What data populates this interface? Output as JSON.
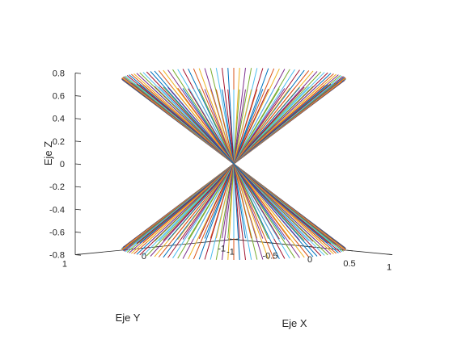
{
  "chart_data": {
    "type": "line3d",
    "title": "",
    "xlabel": "Eje X",
    "ylabel": "Eje Y",
    "zlabel": "Eje Z",
    "xlim": [
      -1,
      1
    ],
    "ylim": [
      -1,
      1
    ],
    "zlim": [
      -0.8,
      0.8
    ],
    "xticks": [
      "-1",
      "-0.5",
      "0",
      "0.5",
      "1"
    ],
    "yticks": [
      "-1",
      "0",
      "1"
    ],
    "zticks": [
      "0.8",
      "0.6",
      "0.4",
      "0.2",
      "0",
      "-0.2",
      "-0.4",
      "-0.6",
      "-0.8"
    ],
    "surface": "double cone: line segments from (cos t, sin t, -0.75) through origin to (-cos t, -sin t, 0.75)",
    "cone_radius": 1,
    "cone_half_height": 0.75,
    "line_count": 120,
    "grid": false,
    "line_colors": [
      "#0072BD",
      "#D95319",
      "#EDB120",
      "#7E2F8E",
      "#77AC30",
      "#4DBEEE",
      "#A2142F"
    ]
  }
}
